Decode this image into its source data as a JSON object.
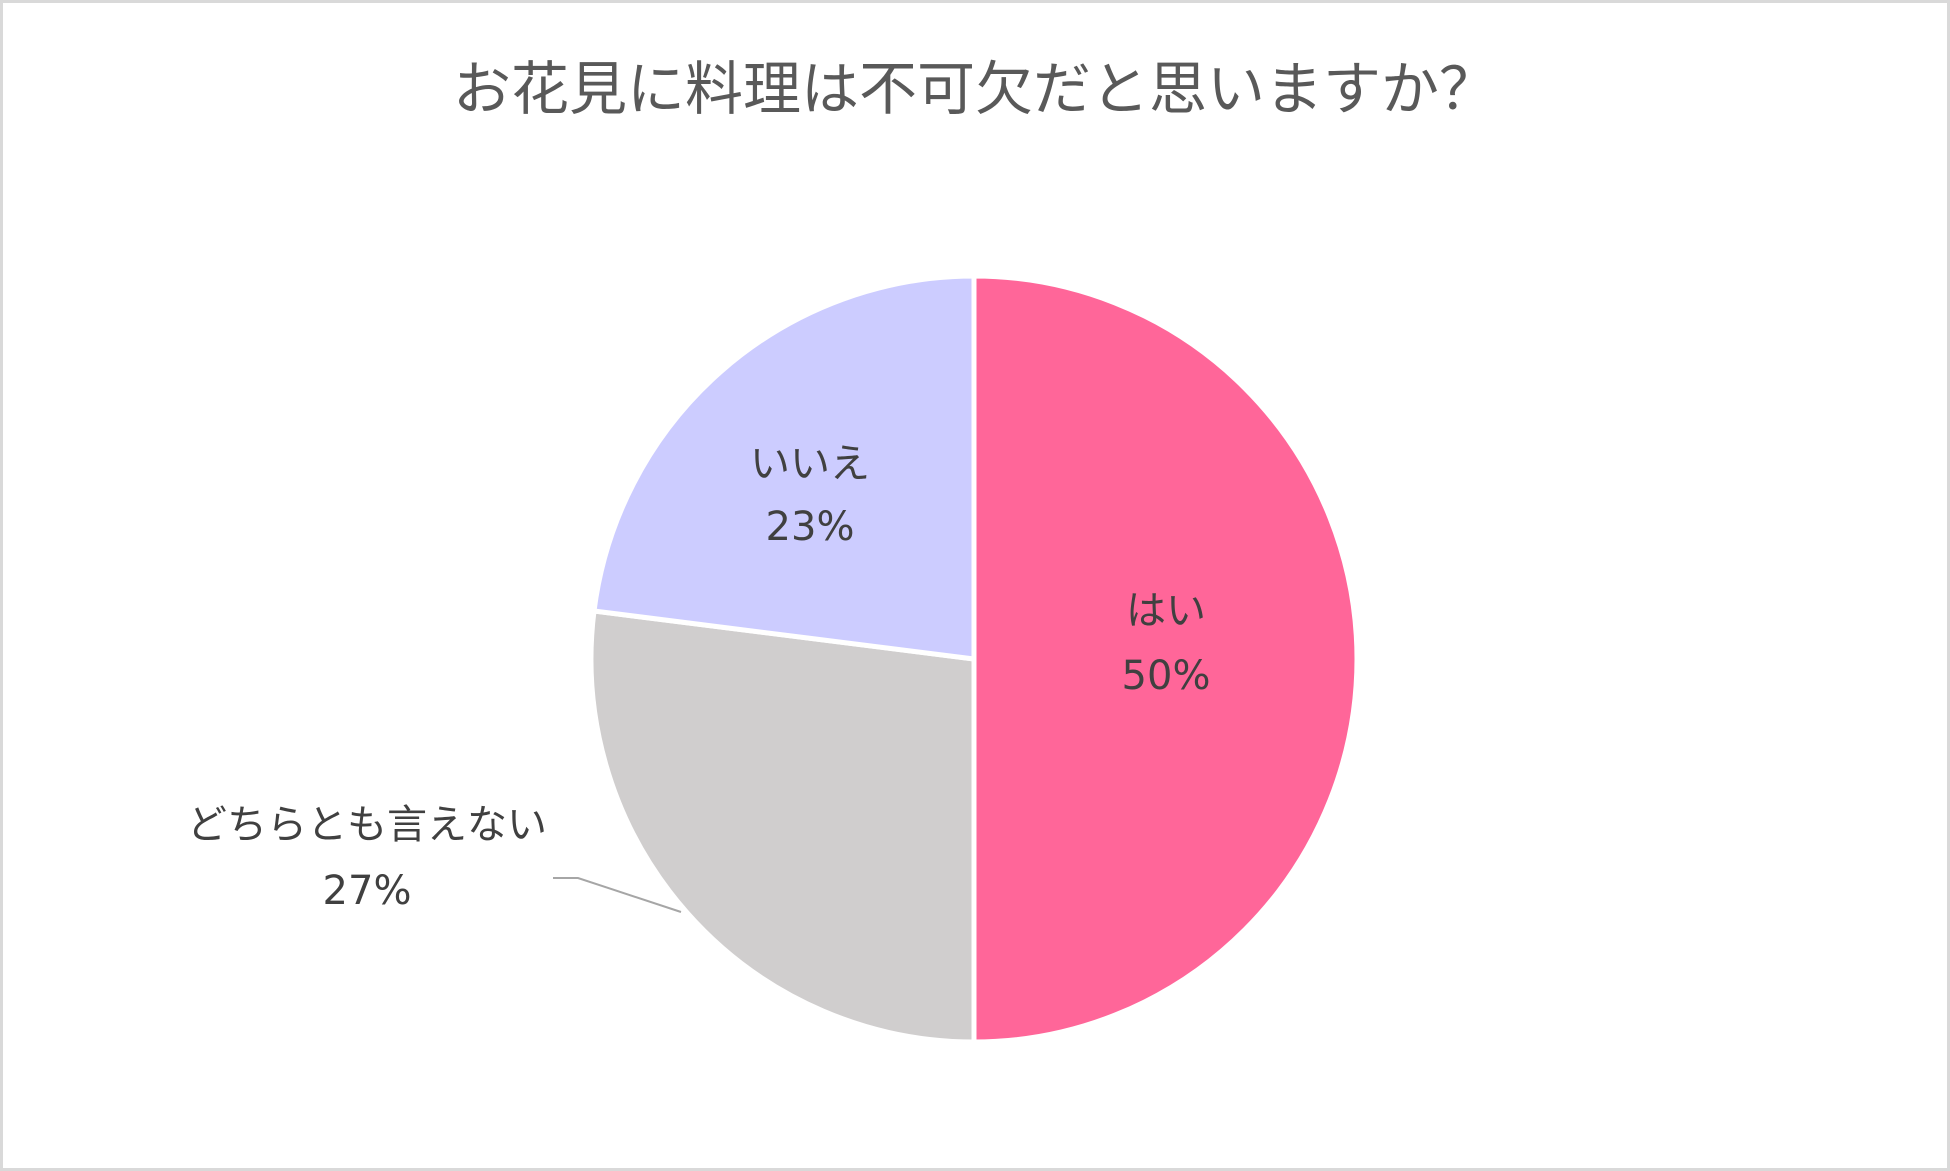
{
  "chart_data": {
    "type": "pie",
    "title": "お花見に料理は不可欠だと思いますか？",
    "categories": [
      "はい",
      "どちらとも言えない",
      "いいえ"
    ],
    "values": [
      50,
      27,
      23
    ],
    "value_labels": [
      "50%",
      "27%",
      "23%"
    ],
    "colors": [
      "#FF6699",
      "#D0CECE",
      "#CCCCFF"
    ]
  }
}
